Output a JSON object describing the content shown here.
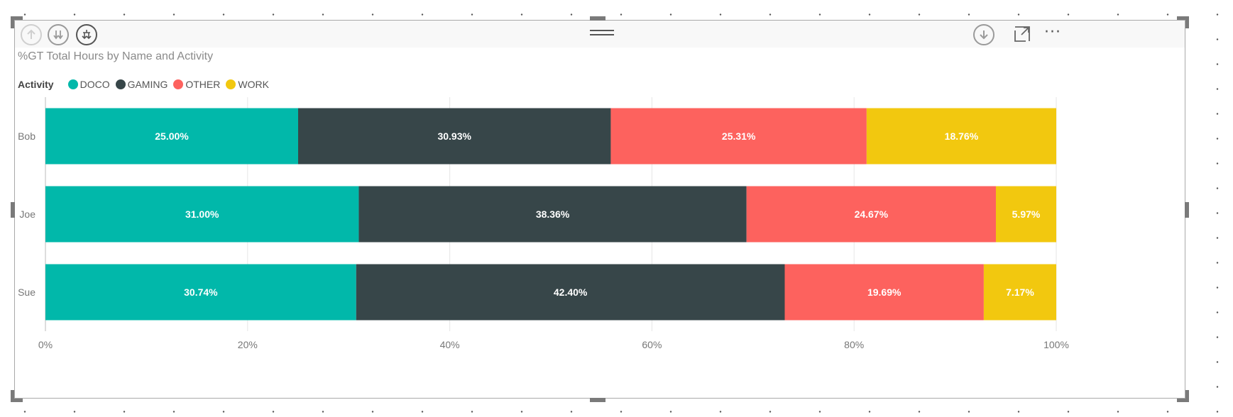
{
  "visual": {
    "title": "%GT Total Hours by Name and Activity",
    "header_icons": [
      "drill-up-icon",
      "expand-next-level-icon",
      "expand-hierarchy-icon",
      "drill-mode-icon",
      "focus-mode-icon",
      "more-options-icon"
    ],
    "more_label": "···"
  },
  "legend": {
    "title": "Activity",
    "items": [
      {
        "label": "DOCO",
        "color": "#01B8AA"
      },
      {
        "label": "GAMING",
        "color": "#374649"
      },
      {
        "label": "OTHER",
        "color": "#FD625E"
      },
      {
        "label": "WORK",
        "color": "#F2C80F"
      }
    ]
  },
  "chart_data": {
    "type": "bar",
    "orientation": "horizontal",
    "stacked": "100%",
    "title": "%GT Total Hours by Name and Activity",
    "categories": [
      "Bob",
      "Joe",
      "Sue"
    ],
    "series": [
      {
        "name": "DOCO",
        "color": "#01B8AA",
        "values": [
          25.0,
          31.0,
          30.74
        ],
        "labels": [
          "25.00%",
          "31.00%",
          "30.74%"
        ]
      },
      {
        "name": "GAMING",
        "color": "#374649",
        "values": [
          30.93,
          38.36,
          42.4
        ],
        "labels": [
          "30.93%",
          "38.36%",
          "42.40%"
        ]
      },
      {
        "name": "OTHER",
        "color": "#FD625E",
        "values": [
          25.31,
          24.67,
          19.69
        ],
        "labels": [
          "25.31%",
          "24.67%",
          "19.69%"
        ]
      },
      {
        "name": "WORK",
        "color": "#F2C80F",
        "values": [
          18.76,
          5.97,
          7.17
        ],
        "labels": [
          "18.76%",
          "5.97%",
          "7.17%"
        ]
      }
    ],
    "x_ticks": [
      0,
      20,
      40,
      60,
      80,
      100
    ],
    "x_tick_labels": [
      "0%",
      "20%",
      "40%",
      "60%",
      "80%",
      "100%"
    ],
    "xlim": [
      0,
      100
    ],
    "grid": true,
    "legend_position": "top-left"
  }
}
